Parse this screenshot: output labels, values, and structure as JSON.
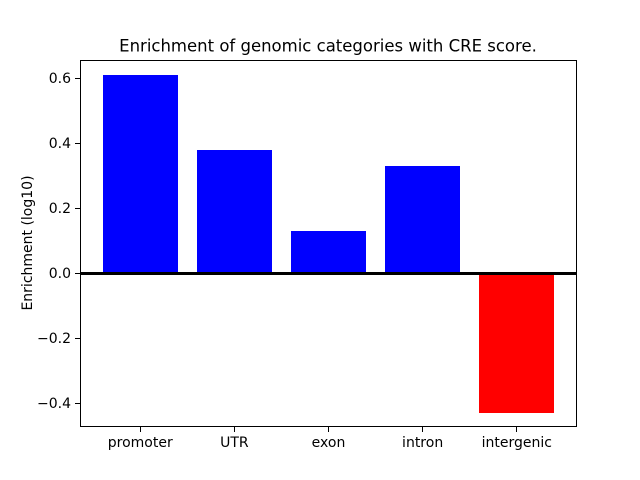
{
  "chart_data": {
    "type": "bar",
    "title": "Enrichment of genomic categories with CRE score.",
    "xlabel": "",
    "ylabel": "Enrichment (log10)",
    "categories": [
      "promoter",
      "UTR",
      "exon",
      "intron",
      "intergenic"
    ],
    "values": [
      0.61,
      0.38,
      0.13,
      0.33,
      -0.43
    ],
    "bar_colors": [
      "#0000ff",
      "#0000ff",
      "#0000ff",
      "#0000ff",
      "#ff0000"
    ],
    "positive_color": "#0000ff",
    "negative_color": "#ff0000",
    "bar_width": 0.8,
    "ylim": [
      -0.472,
      0.657
    ],
    "xlim": [
      -0.64,
      4.64
    ],
    "yticks": [
      0.6,
      0.4,
      0.2,
      0.0,
      -0.2,
      -0.4
    ],
    "ytick_labels": [
      "0.6",
      "0.4",
      "0.2",
      "0.0",
      "−0.2",
      "−0.4"
    ],
    "zero_line": true,
    "grid": false,
    "legend": null,
    "axis_color": "#000000",
    "background_color": "#ffffff"
  }
}
